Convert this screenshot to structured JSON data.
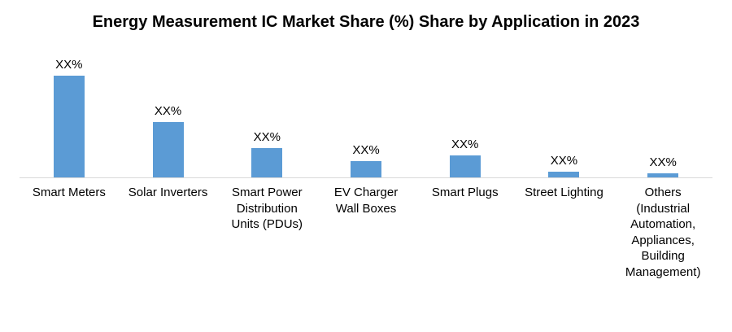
{
  "title": "Energy Measurement IC Market Share (%) Share by Application in 2023",
  "colors": {
    "bar": "#5b9bd5",
    "axis_line": "#d9d9d9",
    "text": "#000000",
    "background": "#ffffff"
  },
  "chart_data": {
    "type": "bar",
    "title": "Energy Measurement IC Market Share (%) Share by Application in 2023",
    "categories": [
      "Smart Meters",
      "Solar Inverters",
      "Smart Power Distribution Units (PDUs)",
      "EV Charger Wall Boxes",
      "Smart Plugs",
      "Street Lighting",
      "Others (Industrial Automation, Appliances, Building Management)"
    ],
    "values": [
      35,
      19,
      10,
      5.5,
      7.5,
      2,
      1.5
    ],
    "data_labels": [
      "XX%",
      "XX%",
      "XX%",
      "XX%",
      "XX%",
      "XX%",
      "XX%"
    ],
    "value_note": "Bars display placeholder data labels 'XX%'; values are relative estimates read from bar heights",
    "xlabel": "",
    "ylabel": "",
    "ylim": [
      0,
      42
    ],
    "grid": false,
    "legend": false,
    "bar_color": "#5b9bd5"
  }
}
